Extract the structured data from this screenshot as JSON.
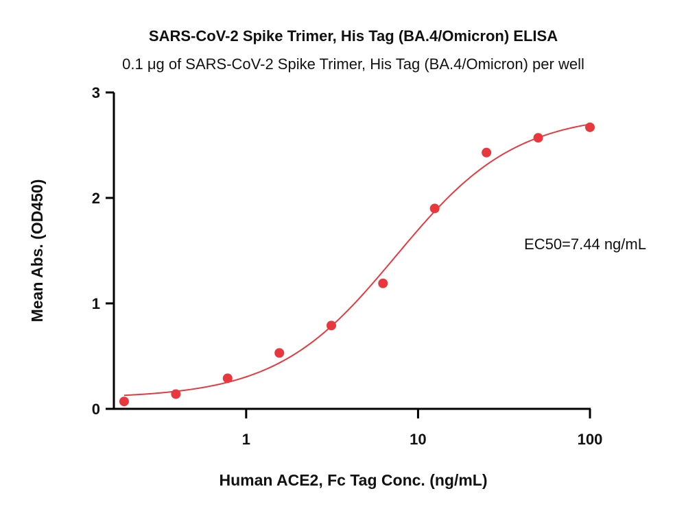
{
  "chart_data": {
    "type": "scatter",
    "title": "SARS-CoV-2 Spike Trimer, His Tag (BA.4/Omicron) ELISA",
    "subtitle": "0.1 μg of SARS-CoV-2 Spike Trimer, His Tag (BA.4/Omicron) per well",
    "xlabel": "Human ACE2, Fc Tag Conc. (ng/mL)",
    "ylabel": "Mean Abs. (OD450)",
    "x_scale": "log",
    "xlim": [
      0.17,
      100
    ],
    "ylim": [
      0,
      3
    ],
    "x_ticks": [
      {
        "value": 1,
        "label": "1"
      },
      {
        "value": 10,
        "label": "10"
      },
      {
        "value": 100,
        "label": "100"
      }
    ],
    "y_ticks": [
      {
        "value": 0,
        "label": "0"
      },
      {
        "value": 1,
        "label": "1"
      },
      {
        "value": 2,
        "label": "2"
      },
      {
        "value": 3,
        "label": "3"
      }
    ],
    "grid": false,
    "legend": "none",
    "color": "#e8383d",
    "series": [
      {
        "points": [
          {
            "x": 0.195,
            "y": 0.07
          },
          {
            "x": 0.39,
            "y": 0.14
          },
          {
            "x": 0.78,
            "y": 0.29
          },
          {
            "x": 1.56,
            "y": 0.53
          },
          {
            "x": 3.13,
            "y": 0.79
          },
          {
            "x": 6.25,
            "y": 1.19
          },
          {
            "x": 12.5,
            "y": 1.9
          },
          {
            "x": 25,
            "y": 2.43
          },
          {
            "x": 50,
            "y": 2.57
          },
          {
            "x": 100,
            "y": 2.67
          }
        ]
      }
    ],
    "fit": {
      "type": "4PL",
      "bottom": 0.1,
      "top": 2.8,
      "ec50": 7.44,
      "hill": 1.25,
      "x_range": [
        0.195,
        100
      ]
    },
    "annotation": "EC50=7.44 ng/mL"
  }
}
